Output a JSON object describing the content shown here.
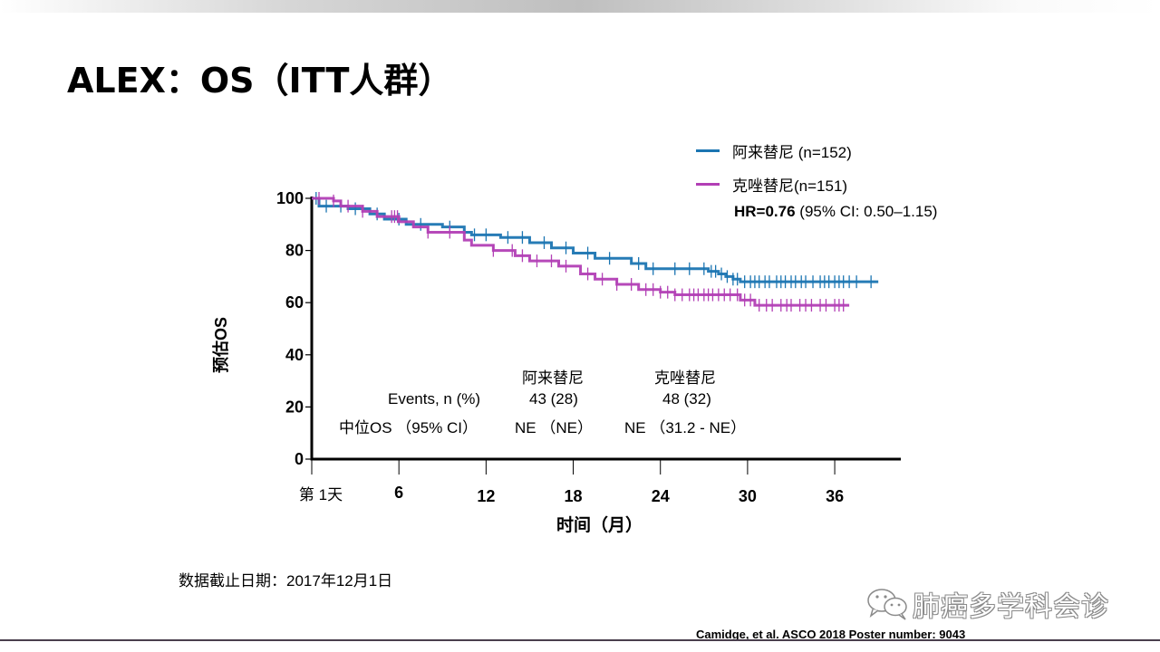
{
  "slide": {
    "title": "ALEX：OS（ITT人群）",
    "data_cutoff": "数据截止日期：2017年12月1日",
    "watermark": "肺癌多学科会诊",
    "watermark_icon": "wechat-icon",
    "citation": "Camidge, et al. ASCO 2018 Poster number: 9043"
  },
  "stats_table": {
    "col_headers": [
      "阿来替尼",
      "克唑替尼"
    ],
    "rows": [
      {
        "label": "Events, n (%)",
        "values": [
          "43 (28)",
          "48 (32)"
        ]
      },
      {
        "label": "中位OS （95% CI）",
        "values": [
          "NE （NE）",
          "NE （31.2 - NE）"
        ]
      }
    ]
  },
  "chart_data": {
    "type": "line",
    "subtype": "kaplan-meier-step",
    "title": "",
    "xlabel": "时间（月）",
    "ylabel": "预估OS",
    "xlim": [
      0,
      41
    ],
    "ylim": [
      0,
      100
    ],
    "x_ticks": [
      0,
      6,
      12,
      18,
      24,
      30,
      36
    ],
    "x_tick_labels": [
      "第 1天",
      "6",
      "12",
      "18",
      "24",
      "30",
      "36"
    ],
    "y_ticks": [
      0,
      20,
      40,
      60,
      80,
      100
    ],
    "y_tick_labels": [
      "0",
      "20",
      "40",
      "60",
      "80",
      "100"
    ],
    "grid": false,
    "legend_position": "top-right",
    "annotation": {
      "bold": "HR=0.76",
      "rest": " (95% CI: 0.50–1.15)"
    },
    "series": [
      {
        "name": "阿来替尼 (n=152)",
        "color": "#1b75b2",
        "steps": [
          [
            0,
            100
          ],
          [
            0.5,
            97
          ],
          [
            2.5,
            96
          ],
          [
            4,
            94
          ],
          [
            5,
            92
          ],
          [
            6.5,
            90
          ],
          [
            9,
            89
          ],
          [
            10.5,
            87
          ],
          [
            11,
            86
          ],
          [
            13,
            85
          ],
          [
            15,
            83
          ],
          [
            16.5,
            81
          ],
          [
            18,
            79
          ],
          [
            19.5,
            77
          ],
          [
            22,
            75
          ],
          [
            23,
            73
          ],
          [
            27.3,
            72
          ],
          [
            28,
            71
          ],
          [
            28.5,
            70
          ],
          [
            29,
            69
          ],
          [
            29.5,
            68
          ],
          [
            39,
            68
          ]
        ],
        "censor_months": [
          0.3,
          1,
          2,
          3,
          4.5,
          6,
          7.5,
          9.5,
          11.2,
          12,
          13.5,
          14.5,
          16,
          17.5,
          19,
          20.5,
          22.5,
          23.5,
          25,
          26,
          27,
          27.5,
          27.8,
          28.2,
          28.6,
          29,
          29.3,
          29.8,
          30.2,
          30.5,
          30.8,
          31.2,
          31.5,
          32,
          32.3,
          32.6,
          33,
          33.3,
          33.7,
          34,
          34.5,
          35,
          35.3,
          35.6,
          36,
          36.3,
          36.6,
          37,
          37.5,
          38.5
        ]
      },
      {
        "name": "克唑替尼(n=151)",
        "color": "#b23fb5",
        "steps": [
          [
            0,
            100
          ],
          [
            1.5,
            99
          ],
          [
            2,
            97
          ],
          [
            3.5,
            95
          ],
          [
            4.5,
            93
          ],
          [
            6,
            91
          ],
          [
            7,
            89
          ],
          [
            8,
            87
          ],
          [
            10.5,
            84
          ],
          [
            11,
            82
          ],
          [
            12.5,
            80
          ],
          [
            14,
            78
          ],
          [
            15,
            76
          ],
          [
            17,
            74
          ],
          [
            18.5,
            71
          ],
          [
            19.5,
            69
          ],
          [
            21,
            67
          ],
          [
            22.5,
            65
          ],
          [
            24,
            64
          ],
          [
            25,
            63
          ],
          [
            29.5,
            61
          ],
          [
            30.5,
            59
          ],
          [
            37,
            59
          ]
        ],
        "censor_months": [
          0.5,
          1.5,
          2.5,
          3.5,
          5.5,
          5.7,
          5.9,
          8,
          9.5,
          12.5,
          13.8,
          14.5,
          15.5,
          16.5,
          17.5,
          19,
          20,
          21,
          22,
          23,
          23.5,
          24,
          24.5,
          25,
          25.5,
          26,
          26.3,
          26.6,
          27,
          27.3,
          27.6,
          28,
          28.4,
          28.8,
          29.3,
          29.8,
          30.2,
          30.8,
          31.3,
          31.7,
          32.3,
          32.7,
          33,
          33.6,
          34,
          34.4,
          35,
          35.4,
          36,
          36.3,
          36.6
        ]
      }
    ]
  }
}
